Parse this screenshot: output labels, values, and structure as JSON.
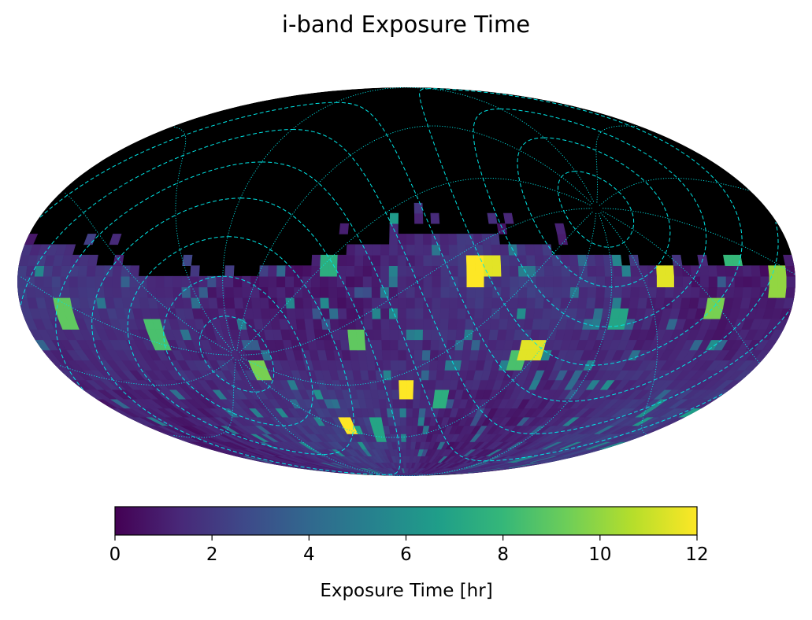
{
  "chart_data": {
    "type": "heatmap",
    "title": "i-band Exposure Time",
    "projection": "Mollweide all-sky",
    "colormap": "viridis",
    "missing_color": "#000000",
    "colorbar": {
      "label": "Exposure Time [hr]",
      "range": [
        0,
        12
      ],
      "ticks": [
        0,
        2,
        4,
        6,
        8,
        10,
        12
      ],
      "tick_labels": [
        "0",
        "2",
        "4",
        "6",
        "8",
        "10",
        "12"
      ],
      "orientation": "horizontal"
    },
    "overlay": {
      "dashed_line_color": "#00e5e5",
      "dotted_line_color": "#00e5e5"
    },
    "hot_spots": [
      {
        "lon": 120,
        "lat": 2,
        "value": 11.5
      },
      {
        "lon": 145,
        "lat": -10,
        "value": 9.5
      },
      {
        "lon": 172,
        "lat": 0,
        "value": 10.0
      },
      {
        "lon": 40,
        "lat": 7,
        "value": 11.5
      },
      {
        "lon": 32,
        "lat": 4,
        "value": 12.0
      },
      {
        "lon": 62,
        "lat": -25,
        "value": 11.5
      },
      {
        "lon": 55,
        "lat": -30,
        "value": 8.5
      },
      {
        "lon": 0,
        "lat": -42,
        "value": 12.0
      },
      {
        "lon": -40,
        "lat": -58,
        "value": 12.0
      },
      {
        "lon": 20,
        "lat": -45,
        "value": 7.5
      },
      {
        "lon": -20,
        "lat": -60,
        "value": 7.0
      },
      {
        "lon": -75,
        "lat": -35,
        "value": 9.5
      },
      {
        "lon": -120,
        "lat": -20,
        "value": 8.5
      },
      {
        "lon": -160,
        "lat": -12,
        "value": 9.0
      },
      {
        "lon": -90,
        "lat": 14,
        "value": 8.5
      },
      {
        "lon": -25,
        "lat": -22,
        "value": 9.0
      },
      {
        "lon": -35,
        "lat": 8,
        "value": 7.5
      },
      {
        "lon": 150,
        "lat": 12,
        "value": 8.0
      },
      {
        "lon": 100,
        "lat": -15,
        "value": 7.0
      },
      {
        "lon": -5,
        "lat": 25,
        "value": 6.5
      }
    ]
  }
}
